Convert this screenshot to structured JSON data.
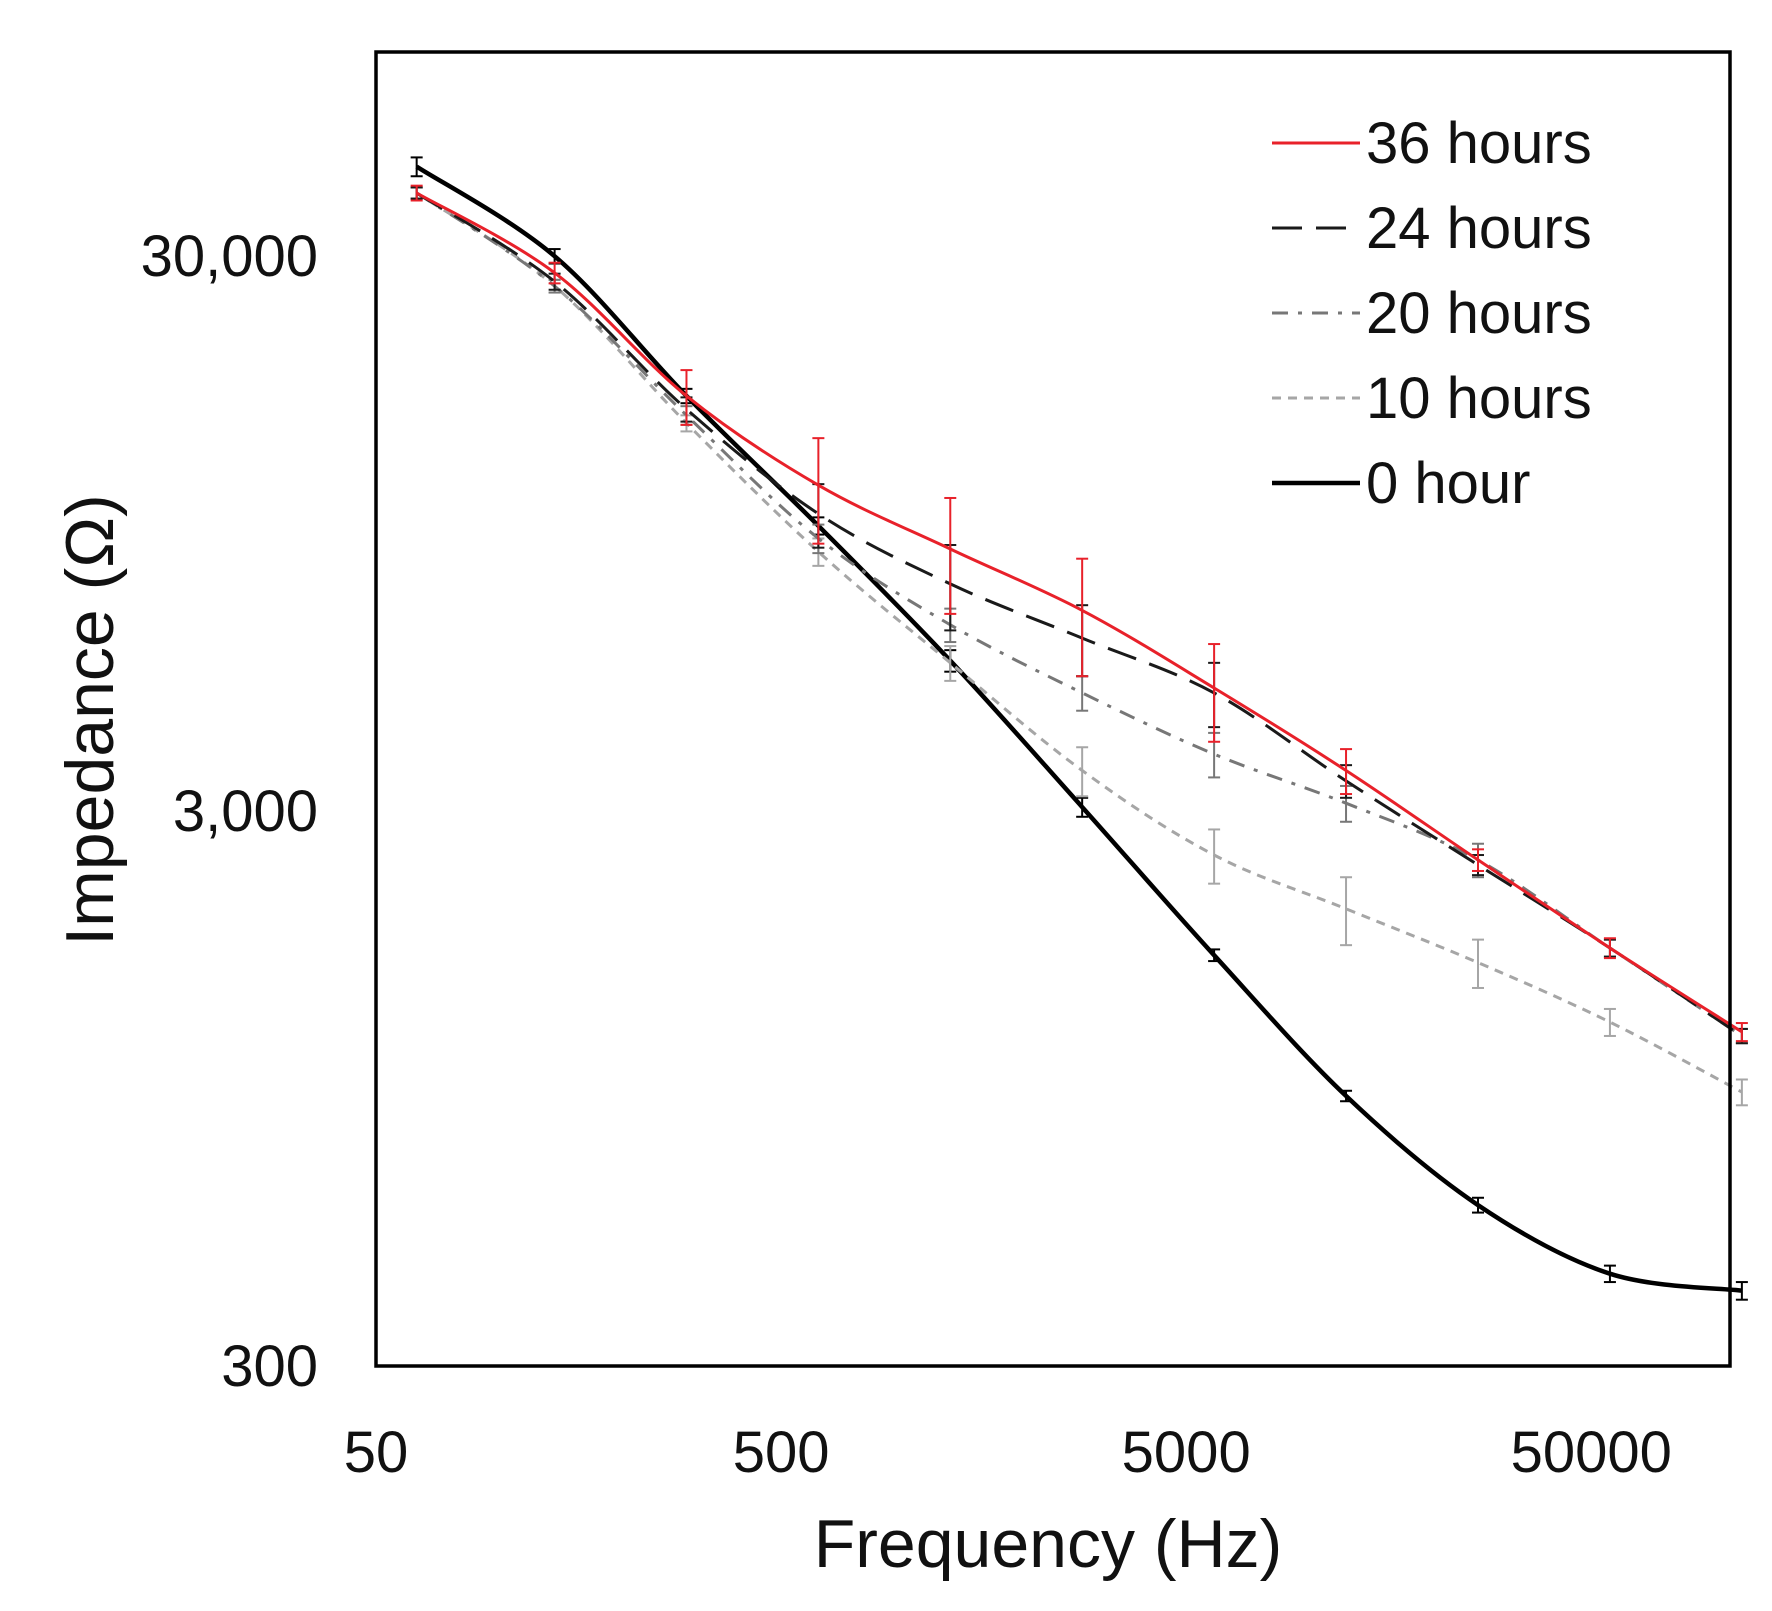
{
  "chart_data": {
    "type": "line",
    "title": "",
    "xlabel": "Frequency (Hz)",
    "ylabel": "Impedance (Ω)",
    "xscale": "log",
    "yscale": "log",
    "xlim": [
      50,
      110000
    ],
    "ylim": [
      300,
      70000
    ],
    "xticks": [
      50,
      500,
      5000,
      50000
    ],
    "xtick_labels": [
      "50",
      "500",
      "5000",
      "50000"
    ],
    "yticks": [
      300,
      3000,
      30000
    ],
    "ytick_labels": [
      "300",
      "3,000",
      "30,000"
    ],
    "grid": false,
    "legend_position": "top-right",
    "x": [
      63,
      138,
      292,
      618,
      1308,
      2768,
      5860,
      12404,
      26260,
      55590,
      117680
    ],
    "series": [
      {
        "name": "36 hours",
        "color": "#e8212a",
        "dash": "solid",
        "width": 3,
        "values": [
          39000,
          28000,
          16800,
          11600,
          8900,
          6900,
          5000,
          3550,
          2450,
          1700,
          1200
        ],
        "errors": [
          1200,
          1200,
          1900,
          2500,
          2100,
          1650,
          1000,
          330,
          110,
          70,
          45
        ]
      },
      {
        "name": "24 hours",
        "color": "#1a1a1a",
        "dash": "long-dash",
        "width": 3,
        "values": [
          39000,
          27000,
          15900,
          10300,
          7700,
          6150,
          4900,
          3400,
          2400,
          1700,
          1180
        ],
        "errors": [
          900,
          900,
          800,
          1350,
          1350,
          900,
          650,
          230,
          100,
          60,
          35
        ]
      },
      {
        "name": "20 hours",
        "color": "#777777",
        "dash": "dash-dot",
        "width": 3,
        "values": [
          39000,
          26500,
          15500,
          9300,
          6500,
          4900,
          3800,
          3100,
          2450,
          1700,
          1180
        ],
        "errors": [
          900,
          700,
          600,
          550,
          450,
          350,
          350,
          230,
          170,
          60,
          35
        ]
      },
      {
        "name": "10 hours",
        "color": "#a6a6a6",
        "dash": "short-dash",
        "width": 3,
        "values": [
          39000,
          26500,
          15000,
          8800,
          5550,
          3550,
          2500,
          2000,
          1600,
          1250,
          935
        ],
        "errors": [
          900,
          700,
          500,
          500,
          400,
          360,
          280,
          280,
          160,
          70,
          50
        ]
      },
      {
        "name": "0 hour",
        "color": "#000000",
        "dash": "solid",
        "width": 4.5,
        "values": [
          43500,
          30000,
          16800,
          9800,
          5600,
          3050,
          1650,
          920,
          585,
          440,
          410
        ],
        "errors": [
          1700,
          900,
          500,
          350,
          250,
          120,
          40,
          20,
          18,
          15,
          15
        ]
      }
    ]
  }
}
